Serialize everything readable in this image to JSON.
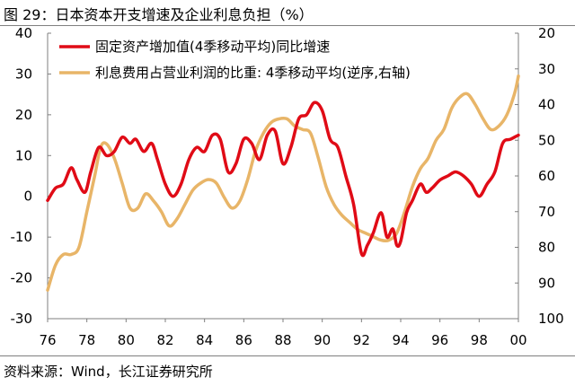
{
  "title": "图 29：日本资本开支增速及企业利息负担（%）",
  "source": "资料来源：Wind，长江证券研究所",
  "chart_data": {
    "type": "line",
    "x_tick_labels": [
      "76",
      "78",
      "80",
      "82",
      "84",
      "86",
      "88",
      "90",
      "92",
      "94",
      "96",
      "98",
      "00"
    ],
    "x_range": [
      1976,
      2000
    ],
    "left_axis": {
      "ticks": [
        "40",
        "30",
        "20",
        "10",
        "0",
        "-10",
        "-20",
        "-30"
      ],
      "ylim": [
        -30,
        40
      ]
    },
    "right_axis": {
      "ticks": [
        "20",
        "30",
        "40",
        "50",
        "60",
        "70",
        "80",
        "90",
        "100"
      ],
      "ylim": [
        20,
        100
      ],
      "inverted": true
    },
    "grid": false,
    "legend_position": "top-left",
    "series": [
      {
        "name": "固定资产增加值(4季移动平均)同比增速",
        "color": "#e00b16",
        "axis": "left",
        "x": [
          1976.0,
          1976.4,
          1976.8,
          1977.2,
          1977.5,
          1977.9,
          1978.2,
          1978.6,
          1979.0,
          1979.4,
          1979.8,
          1980.2,
          1980.5,
          1980.9,
          1981.3,
          1981.6,
          1982.0,
          1982.4,
          1982.8,
          1983.2,
          1983.6,
          1984.0,
          1984.4,
          1984.8,
          1985.2,
          1985.6,
          1986.0,
          1986.4,
          1986.8,
          1987.2,
          1987.6,
          1988.0,
          1988.4,
          1988.8,
          1989.2,
          1989.6,
          1990.0,
          1990.4,
          1990.8,
          1991.2,
          1991.6,
          1992.0,
          1992.3,
          1992.6,
          1993.0,
          1993.3,
          1993.6,
          1993.8,
          1994.0,
          1994.3,
          1994.6,
          1995.0,
          1995.3,
          1995.6,
          1996.0,
          1996.4,
          1996.8,
          1997.2,
          1997.6,
          1998.0,
          1998.4,
          1998.8,
          1999.2,
          1999.6,
          2000.0
        ],
        "y": [
          -1,
          2,
          3,
          7,
          4,
          1,
          6,
          12,
          10,
          11,
          14.5,
          13,
          14,
          11,
          13,
          9,
          3,
          0,
          3,
          9,
          12,
          11,
          15,
          14,
          6,
          8,
          14,
          13,
          9,
          15,
          16,
          8,
          12,
          19,
          20,
          23,
          21,
          14,
          12,
          5,
          -2,
          -14,
          -12,
          -9,
          -4,
          -10,
          -8,
          -12,
          -11,
          -4,
          -1,
          3,
          1,
          2,
          4,
          5,
          6,
          5,
          3,
          0,
          3,
          6,
          13,
          14,
          15
        ]
      },
      {
        "name": "利息费用占营业利润的比重: 4季移动平均(逆序,右轴)",
        "color": "#e8b568",
        "axis": "right",
        "x": [
          1976.0,
          1976.4,
          1976.8,
          1977.2,
          1977.6,
          1978.0,
          1978.4,
          1978.7,
          1979.0,
          1979.4,
          1979.8,
          1980.2,
          1980.6,
          1981.0,
          1981.4,
          1981.8,
          1982.2,
          1982.6,
          1983.0,
          1983.4,
          1983.8,
          1984.2,
          1984.6,
          1985.0,
          1985.4,
          1985.8,
          1986.2,
          1986.6,
          1987.0,
          1987.4,
          1987.8,
          1988.2,
          1988.6,
          1989.0,
          1989.4,
          1989.8,
          1990.2,
          1990.6,
          1991.0,
          1991.4,
          1991.8,
          1992.2,
          1992.6,
          1993.0,
          1993.4,
          1993.8,
          1994.2,
          1994.6,
          1995.0,
          1995.4,
          1995.8,
          1996.2,
          1996.6,
          1997.0,
          1997.4,
          1997.8,
          1998.2,
          1998.6,
          1999.0,
          1999.4,
          1999.8,
          2000.0
        ],
        "y": [
          92,
          85,
          82,
          82,
          80,
          70,
          60,
          52,
          51,
          55,
          62,
          69,
          69,
          65,
          67,
          70,
          74,
          72,
          68,
          64,
          62,
          61,
          62,
          66,
          69,
          67,
          61,
          53,
          48,
          45,
          44,
          44,
          46,
          47,
          48,
          55,
          63,
          68,
          71,
          73,
          75,
          76,
          77,
          78,
          78,
          76,
          70,
          63,
          58,
          55,
          50,
          47,
          41,
          38,
          37,
          40,
          44,
          47,
          46,
          43,
          37,
          32
        ]
      }
    ]
  }
}
